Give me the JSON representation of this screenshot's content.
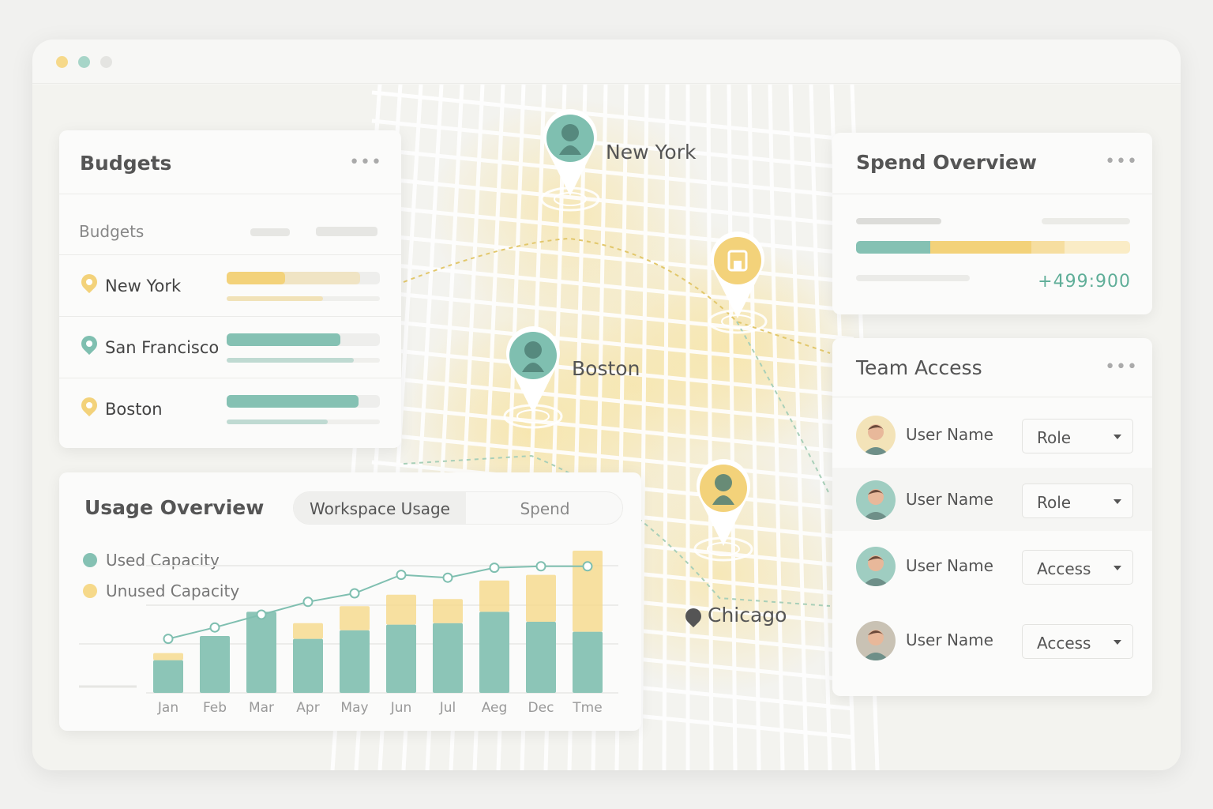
{
  "window": {
    "controls": [
      "close",
      "minimize",
      "maximize"
    ]
  },
  "map": {
    "cities": [
      {
        "name": "New York",
        "pin_color": "#7fbfb0",
        "icon": "person-icon"
      },
      {
        "name": "Boston",
        "pin_color": "#7fbfb0",
        "icon": "person-icon"
      },
      {
        "name": "Chicago",
        "pin_color": "#f3d27a",
        "icon": "person-icon"
      }
    ],
    "extra_pin": {
      "icon": "building-icon",
      "pin_color": "#f3d27a"
    }
  },
  "budgets": {
    "title": "Budgets",
    "more": "•••",
    "header_label": "Budgets",
    "rows": [
      {
        "label": "New York",
        "pin_color": "#f3d27a",
        "fill": 0.38,
        "fill2": 0.87,
        "color": "#f3d27a",
        "sub": 0.63
      },
      {
        "label": "San Francisco",
        "pin_color": "#7fbfb0",
        "fill": 0.74,
        "fill2": 0.74,
        "color": "#85c1b3",
        "sub": 0.83
      },
      {
        "label": "Boston",
        "pin_color": "#f3d27a",
        "fill": 0.86,
        "fill2": 0.86,
        "color": "#85c1b3",
        "sub": 0.66
      }
    ]
  },
  "spend": {
    "title": "Spend Overview",
    "more": "•••",
    "amount": "+499:900",
    "segments": [
      {
        "fraction": 0.27,
        "color": "#85c1b3"
      },
      {
        "fraction": 0.37,
        "color": "#f3d27a"
      },
      {
        "fraction": 0.12,
        "color": "#f6dea0"
      },
      {
        "fraction": 0.24,
        "color": "#faecc6"
      }
    ]
  },
  "team": {
    "title": "Team Access",
    "more": "•••",
    "users": [
      {
        "name": "User Name",
        "role": "Role",
        "avatar_bg": "#f3e3b8"
      },
      {
        "name": "User Name",
        "role": "Role",
        "avatar_bg": "#9fcdc1"
      },
      {
        "name": "User Name",
        "role": "Access",
        "avatar_bg": "#9fcdc1"
      },
      {
        "name": "User Name",
        "role": "Access",
        "avatar_bg": "#c9c2b4"
      }
    ]
  },
  "usage": {
    "title": "Usage Overview",
    "tabs": [
      {
        "label": "Workspace Usage",
        "active": true
      },
      {
        "label": "Spend",
        "active": false
      }
    ],
    "legend": [
      {
        "label": "Used Capacity",
        "color": "#85c1b3"
      },
      {
        "label": "Unused Capacity",
        "color": "#f6d98a"
      }
    ]
  },
  "chart_data": {
    "type": "bar",
    "stacked": true,
    "categories": [
      "Jan",
      "Feb",
      "Mar",
      "Apr",
      "May",
      "Jun",
      "Jul",
      "Aeg",
      "Dec",
      "Tme"
    ],
    "series": [
      {
        "name": "Used Capacity",
        "color": "#8cc5b7",
        "values": [
          23,
          40,
          57,
          38,
          44,
          48,
          49,
          57,
          50,
          43
        ]
      },
      {
        "name": "Unused Capacity",
        "color": "#f6d98a",
        "values": [
          5,
          0,
          0,
          11,
          17,
          21,
          17,
          22,
          33,
          57
        ]
      }
    ],
    "line": {
      "color": "#7fbfb0",
      "values": [
        38,
        46,
        55,
        64,
        70,
        83,
        81,
        88,
        89,
        89
      ]
    },
    "ylim": [
      0,
      100
    ],
    "grid": true,
    "legend_position": "top-left"
  }
}
